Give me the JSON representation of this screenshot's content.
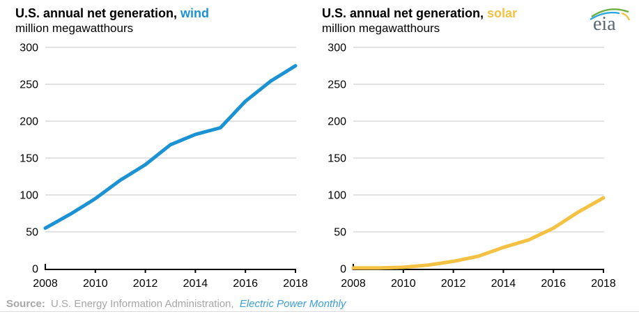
{
  "header": {
    "logo_text": "eia"
  },
  "source": {
    "label": "Source:",
    "text": "U.S. Energy Information Administration,",
    "link": "Electric Power Monthly"
  },
  "colors": {
    "wind": "#1b92d3",
    "solar": "#f5c142",
    "grid": "#d9d9d9",
    "axis": "#000000",
    "source_text": "#a6a6a6",
    "link": "#3b9fd8",
    "logo_gray": "#5b6770",
    "logo_green": "#6cae3e",
    "logo_blue": "#2aa8e0",
    "logo_yellow": "#f5c141"
  },
  "chart_data": [
    {
      "type": "line",
      "title_prefix": "U.S. annual net generation,",
      "highlight": "wind",
      "subtitle": "million megawatthours",
      "ylabel": "million megawatthours",
      "xlabel": "",
      "x": [
        2008,
        2009,
        2010,
        2011,
        2012,
        2013,
        2014,
        2015,
        2016,
        2017,
        2018
      ],
      "values": [
        55,
        74,
        95,
        120,
        141,
        168,
        182,
        191,
        227,
        254,
        275
      ],
      "color": "#1b92d3",
      "ylim": [
        0,
        300
      ],
      "yticks": [
        0,
        50,
        100,
        150,
        200,
        250,
        300
      ],
      "xticks": [
        2008,
        2010,
        2012,
        2014,
        2016,
        2018
      ],
      "grid": true,
      "legend": "none"
    },
    {
      "type": "line",
      "title_prefix": "U.S. annual net generation,",
      "highlight": "solar",
      "subtitle": "million megawatthours",
      "ylabel": "million megawatthours",
      "xlabel": "",
      "x": [
        2008,
        2009,
        2010,
        2011,
        2012,
        2013,
        2014,
        2015,
        2016,
        2017,
        2018
      ],
      "values": [
        1,
        1,
        2,
        5,
        10,
        17,
        29,
        39,
        55,
        77,
        96
      ],
      "color": "#f5c142",
      "ylim": [
        0,
        300
      ],
      "yticks": [
        0,
        50,
        100,
        150,
        200,
        250,
        300
      ],
      "xticks": [
        2008,
        2010,
        2012,
        2014,
        2016,
        2018
      ],
      "grid": true,
      "legend": "none"
    }
  ]
}
